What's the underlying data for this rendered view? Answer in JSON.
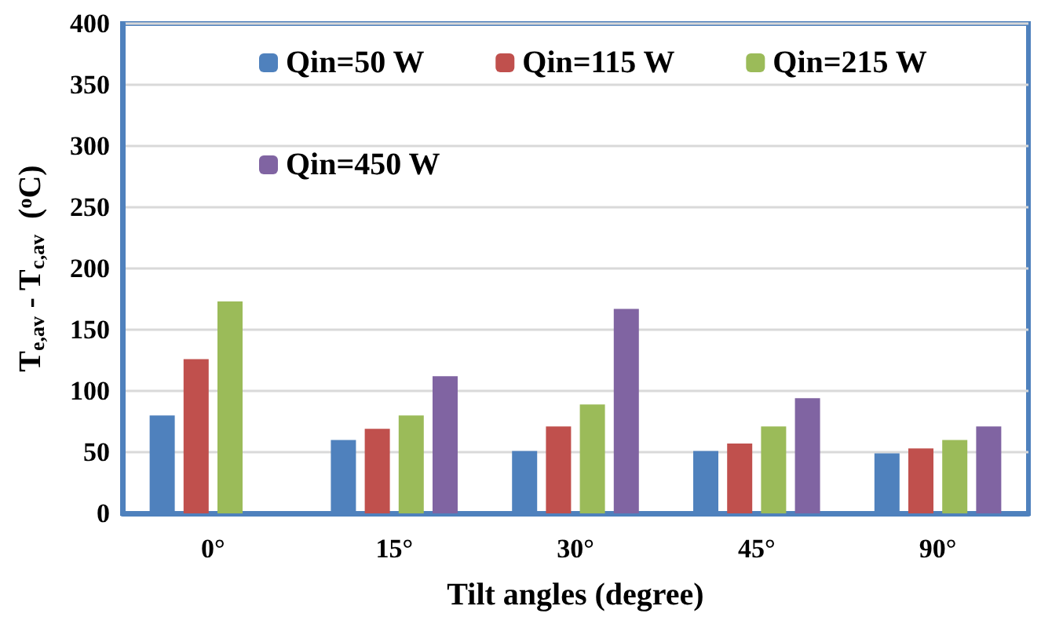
{
  "chart_data": {
    "type": "bar",
    "xlabel": "Tilt angles (degree)",
    "ylabel": "T$_{e,av}$ - T$_{c,av}$  ($^{o}$C)",
    "categories": [
      "0°",
      "15°",
      "30°",
      "45°",
      "90°"
    ],
    "series": [
      {
        "name": "Qin=50 W",
        "color": "#4f81bd",
        "values": [
          80,
          60,
          51,
          51,
          49
        ]
      },
      {
        "name": "Qin=115 W",
        "color": "#c0504d",
        "values": [
          126,
          69,
          71,
          57,
          53
        ]
      },
      {
        "name": "Qin=215 W",
        "color": "#9bbb59",
        "values": [
          173,
          80,
          89,
          71,
          60
        ]
      },
      {
        "name": "Qin=450 W",
        "color": "#8064a2",
        "values": [
          null,
          112,
          167,
          94,
          71
        ]
      }
    ],
    "ylim": [
      0,
      400
    ],
    "yticks": [
      0,
      50,
      100,
      150,
      200,
      250,
      300,
      350,
      400
    ],
    "grid": "y",
    "legend": "top"
  }
}
